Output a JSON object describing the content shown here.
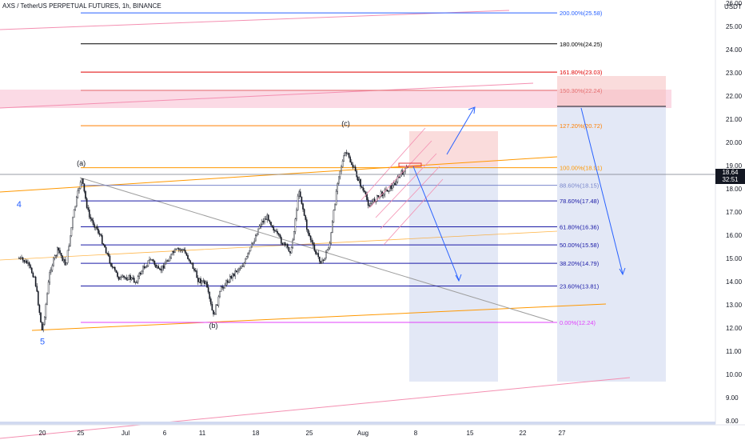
{
  "header": {
    "title": "AXS / TetherUS PERPETUAL FUTURES, 1h, BINANCE",
    "price_unit": "USDT"
  },
  "last_price": {
    "value": "18.64",
    "countdown": "32:51"
  },
  "chart_data": {
    "type": "candlestick",
    "title": "AXS / TetherUS PERPETUAL FUTURES, 1h, BINANCE",
    "xlabel": "",
    "ylabel": "",
    "ylim": [
      8.0,
      26.0
    ],
    "y_ticks": [
      "26.00",
      "25.00",
      "24.00",
      "23.00",
      "22.00",
      "21.00",
      "20.00",
      "19.00",
      "18.00",
      "17.00",
      "16.00",
      "15.00",
      "14.00",
      "13.00",
      "12.00",
      "11.00",
      "10.00",
      "9.00",
      "8.00"
    ],
    "x_ticks": [
      "20",
      "25",
      "Jul",
      "6",
      "11",
      "18",
      "25",
      "Aug",
      "8",
      "15",
      "22",
      "27"
    ],
    "grid": false,
    "price_path": [
      {
        "x": "Jun 17",
        "y": 15.0
      },
      {
        "x": "Jun 18",
        "y": 14.8
      },
      {
        "x": "Jun 19",
        "y": 14.2
      },
      {
        "x": "Jun 20",
        "y": 11.8
      },
      {
        "x": "Jun 21",
        "y": 14.5
      },
      {
        "x": "Jun 22",
        "y": 15.4
      },
      {
        "x": "Jun 23",
        "y": 14.7
      },
      {
        "x": "Jun 24",
        "y": 16.9
      },
      {
        "x": "Jun 25",
        "y": 18.5
      },
      {
        "x": "Jun 26",
        "y": 16.8
      },
      {
        "x": "Jun 27",
        "y": 16.3
      },
      {
        "x": "Jun 28",
        "y": 15.5
      },
      {
        "x": "Jun 29",
        "y": 14.6
      },
      {
        "x": "Jun 30",
        "y": 14.1
      },
      {
        "x": "Jul 1",
        "y": 14.2
      },
      {
        "x": "Jul 2",
        "y": 14.0
      },
      {
        "x": "Jul 3",
        "y": 14.6
      },
      {
        "x": "Jul 4",
        "y": 15.0
      },
      {
        "x": "Jul 5",
        "y": 14.4
      },
      {
        "x": "Jul 6",
        "y": 14.9
      },
      {
        "x": "Jul 7",
        "y": 15.3
      },
      {
        "x": "Jul 8",
        "y": 15.4
      },
      {
        "x": "Jul 9",
        "y": 14.9
      },
      {
        "x": "Jul 10",
        "y": 14.1
      },
      {
        "x": "Jul 11",
        "y": 13.9
      },
      {
        "x": "Jul 12",
        "y": 12.5
      },
      {
        "x": "Jul 13",
        "y": 13.7
      },
      {
        "x": "Jul 14",
        "y": 14.1
      },
      {
        "x": "Jul 15",
        "y": 14.5
      },
      {
        "x": "Jul 16",
        "y": 14.8
      },
      {
        "x": "Jul 17",
        "y": 15.6
      },
      {
        "x": "Jul 18",
        "y": 16.5
      },
      {
        "x": "Jul 19",
        "y": 16.8
      },
      {
        "x": "Jul 20",
        "y": 16.1
      },
      {
        "x": "Jul 21",
        "y": 15.6
      },
      {
        "x": "Jul 22",
        "y": 15.3
      },
      {
        "x": "Jul 23",
        "y": 18.0
      },
      {
        "x": "Jul 24",
        "y": 16.3
      },
      {
        "x": "Jul 25",
        "y": 15.3
      },
      {
        "x": "Jul 26",
        "y": 14.8
      },
      {
        "x": "Jul 27",
        "y": 15.7
      },
      {
        "x": "Jul 28",
        "y": 18.5
      },
      {
        "x": "Jul 29",
        "y": 19.6
      },
      {
        "x": "Jul 30",
        "y": 18.9
      },
      {
        "x": "Jul 31",
        "y": 18.1
      },
      {
        "x": "Aug 1",
        "y": 17.3
      },
      {
        "x": "Aug 2",
        "y": 17.6
      },
      {
        "x": "Aug 3",
        "y": 17.9
      },
      {
        "x": "Aug 4",
        "y": 18.1
      },
      {
        "x": "Aug 5",
        "y": 18.6
      },
      {
        "x": "Aug 6",
        "y": 18.9
      }
    ],
    "fib_levels": [
      {
        "label": "200.00%(25.58)",
        "price": 25.58,
        "color": "#2962ff"
      },
      {
        "label": "180.00%(24.25)",
        "price": 24.25,
        "color": "#000000"
      },
      {
        "label": "161.80%(23.03)",
        "price": 23.03,
        "color": "#e00000"
      },
      {
        "label": "150.30%(22.24)",
        "price": 22.24,
        "color": "#e57373"
      },
      {
        "label": "127.20%(20.72)",
        "price": 20.72,
        "color": "#ff7f00"
      },
      {
        "label": "100.00%(18.91)",
        "price": 18.91,
        "color": "#ff9800"
      },
      {
        "label": "88.60%(18.15)",
        "price": 18.15,
        "color": "#7986cb"
      },
      {
        "label": "78.60%(17.48)",
        "price": 17.48,
        "color": "#1a1aa6"
      },
      {
        "label": "61.80%(16.36)",
        "price": 16.36,
        "color": "#1a1aa6"
      },
      {
        "label": "50.00%(15.58)",
        "price": 15.58,
        "color": "#1a1aa6"
      },
      {
        "label": "38.20%(14.79)",
        "price": 14.79,
        "color": "#1a1aa6"
      },
      {
        "label": "23.60%(13.81)",
        "price": 13.81,
        "color": "#1a1aa6"
      },
      {
        "label": "0.00%(12.24)",
        "price": 12.24,
        "color": "#e040fb"
      }
    ],
    "wave_labels": [
      {
        "text": "4",
        "x": "Jun 17",
        "y": 17.2,
        "color": "#2962ff"
      },
      {
        "text": "5",
        "x": "Jun 20",
        "y": 11.3,
        "color": "#2962ff"
      },
      {
        "text": "(a)",
        "x": "Jun 25",
        "y": 19.0,
        "color": "#131722"
      },
      {
        "text": "(b)",
        "x": "Jul 12",
        "y": 12.0,
        "color": "#131722"
      },
      {
        "text": "(c)",
        "x": "Jul 29",
        "y": 20.7,
        "color": "#131722"
      }
    ]
  },
  "colors": {
    "fib_zone": "#f8bbd0",
    "projection_box": "#d1d9f0",
    "target_box": "#f5c0c0",
    "arrow": "#2962ff",
    "channel": "#ff9800"
  }
}
